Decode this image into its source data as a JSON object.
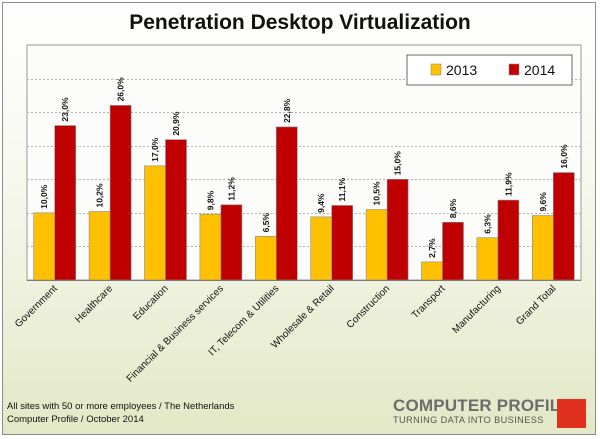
{
  "chart_data": {
    "type": "bar",
    "title": "Penetration Desktop Virtualization",
    "categories": [
      "Government",
      "Healthcare",
      "Education",
      "Financial & Business services",
      "IT, Telecom & Utilities",
      "Wholesale & Retail",
      "Construction",
      "Transport",
      "Manufacturing",
      "Grand Total"
    ],
    "series": [
      {
        "name": "2013",
        "color": "#ffc000",
        "values": [
          10.0,
          10.2,
          17.0,
          9.8,
          6.5,
          9.4,
          10.5,
          2.7,
          6.3,
          9.6
        ],
        "labels": [
          "10,0%",
          "10,2%",
          "17,0%",
          "9,8%",
          "6,5%",
          "9,4%",
          "10,5%",
          "2,7%",
          "6,3%",
          "9,6%"
        ]
      },
      {
        "name": "2014",
        "color": "#c00000",
        "values": [
          23.0,
          26.0,
          20.9,
          11.2,
          22.8,
          11.1,
          15.0,
          8.6,
          11.9,
          16.0
        ],
        "labels": [
          "23,0%",
          "26,0%",
          "20,9%",
          "11,2%",
          "22,8%",
          "11,1%",
          "15,0%",
          "8,6%",
          "11,9%",
          "16,0%"
        ]
      }
    ],
    "ylim": [
      0,
      35
    ],
    "grid": true,
    "legend_position": "top-right"
  },
  "footer": {
    "line1": "All sites with 50 or more employees / The Netherlands",
    "line2": "Computer Profile / October 2014"
  },
  "logo": {
    "name": "COMPUTER PROFILE",
    "tagline": "TURNING DATA INTO BUSINESS",
    "accent": "#e0301e"
  }
}
